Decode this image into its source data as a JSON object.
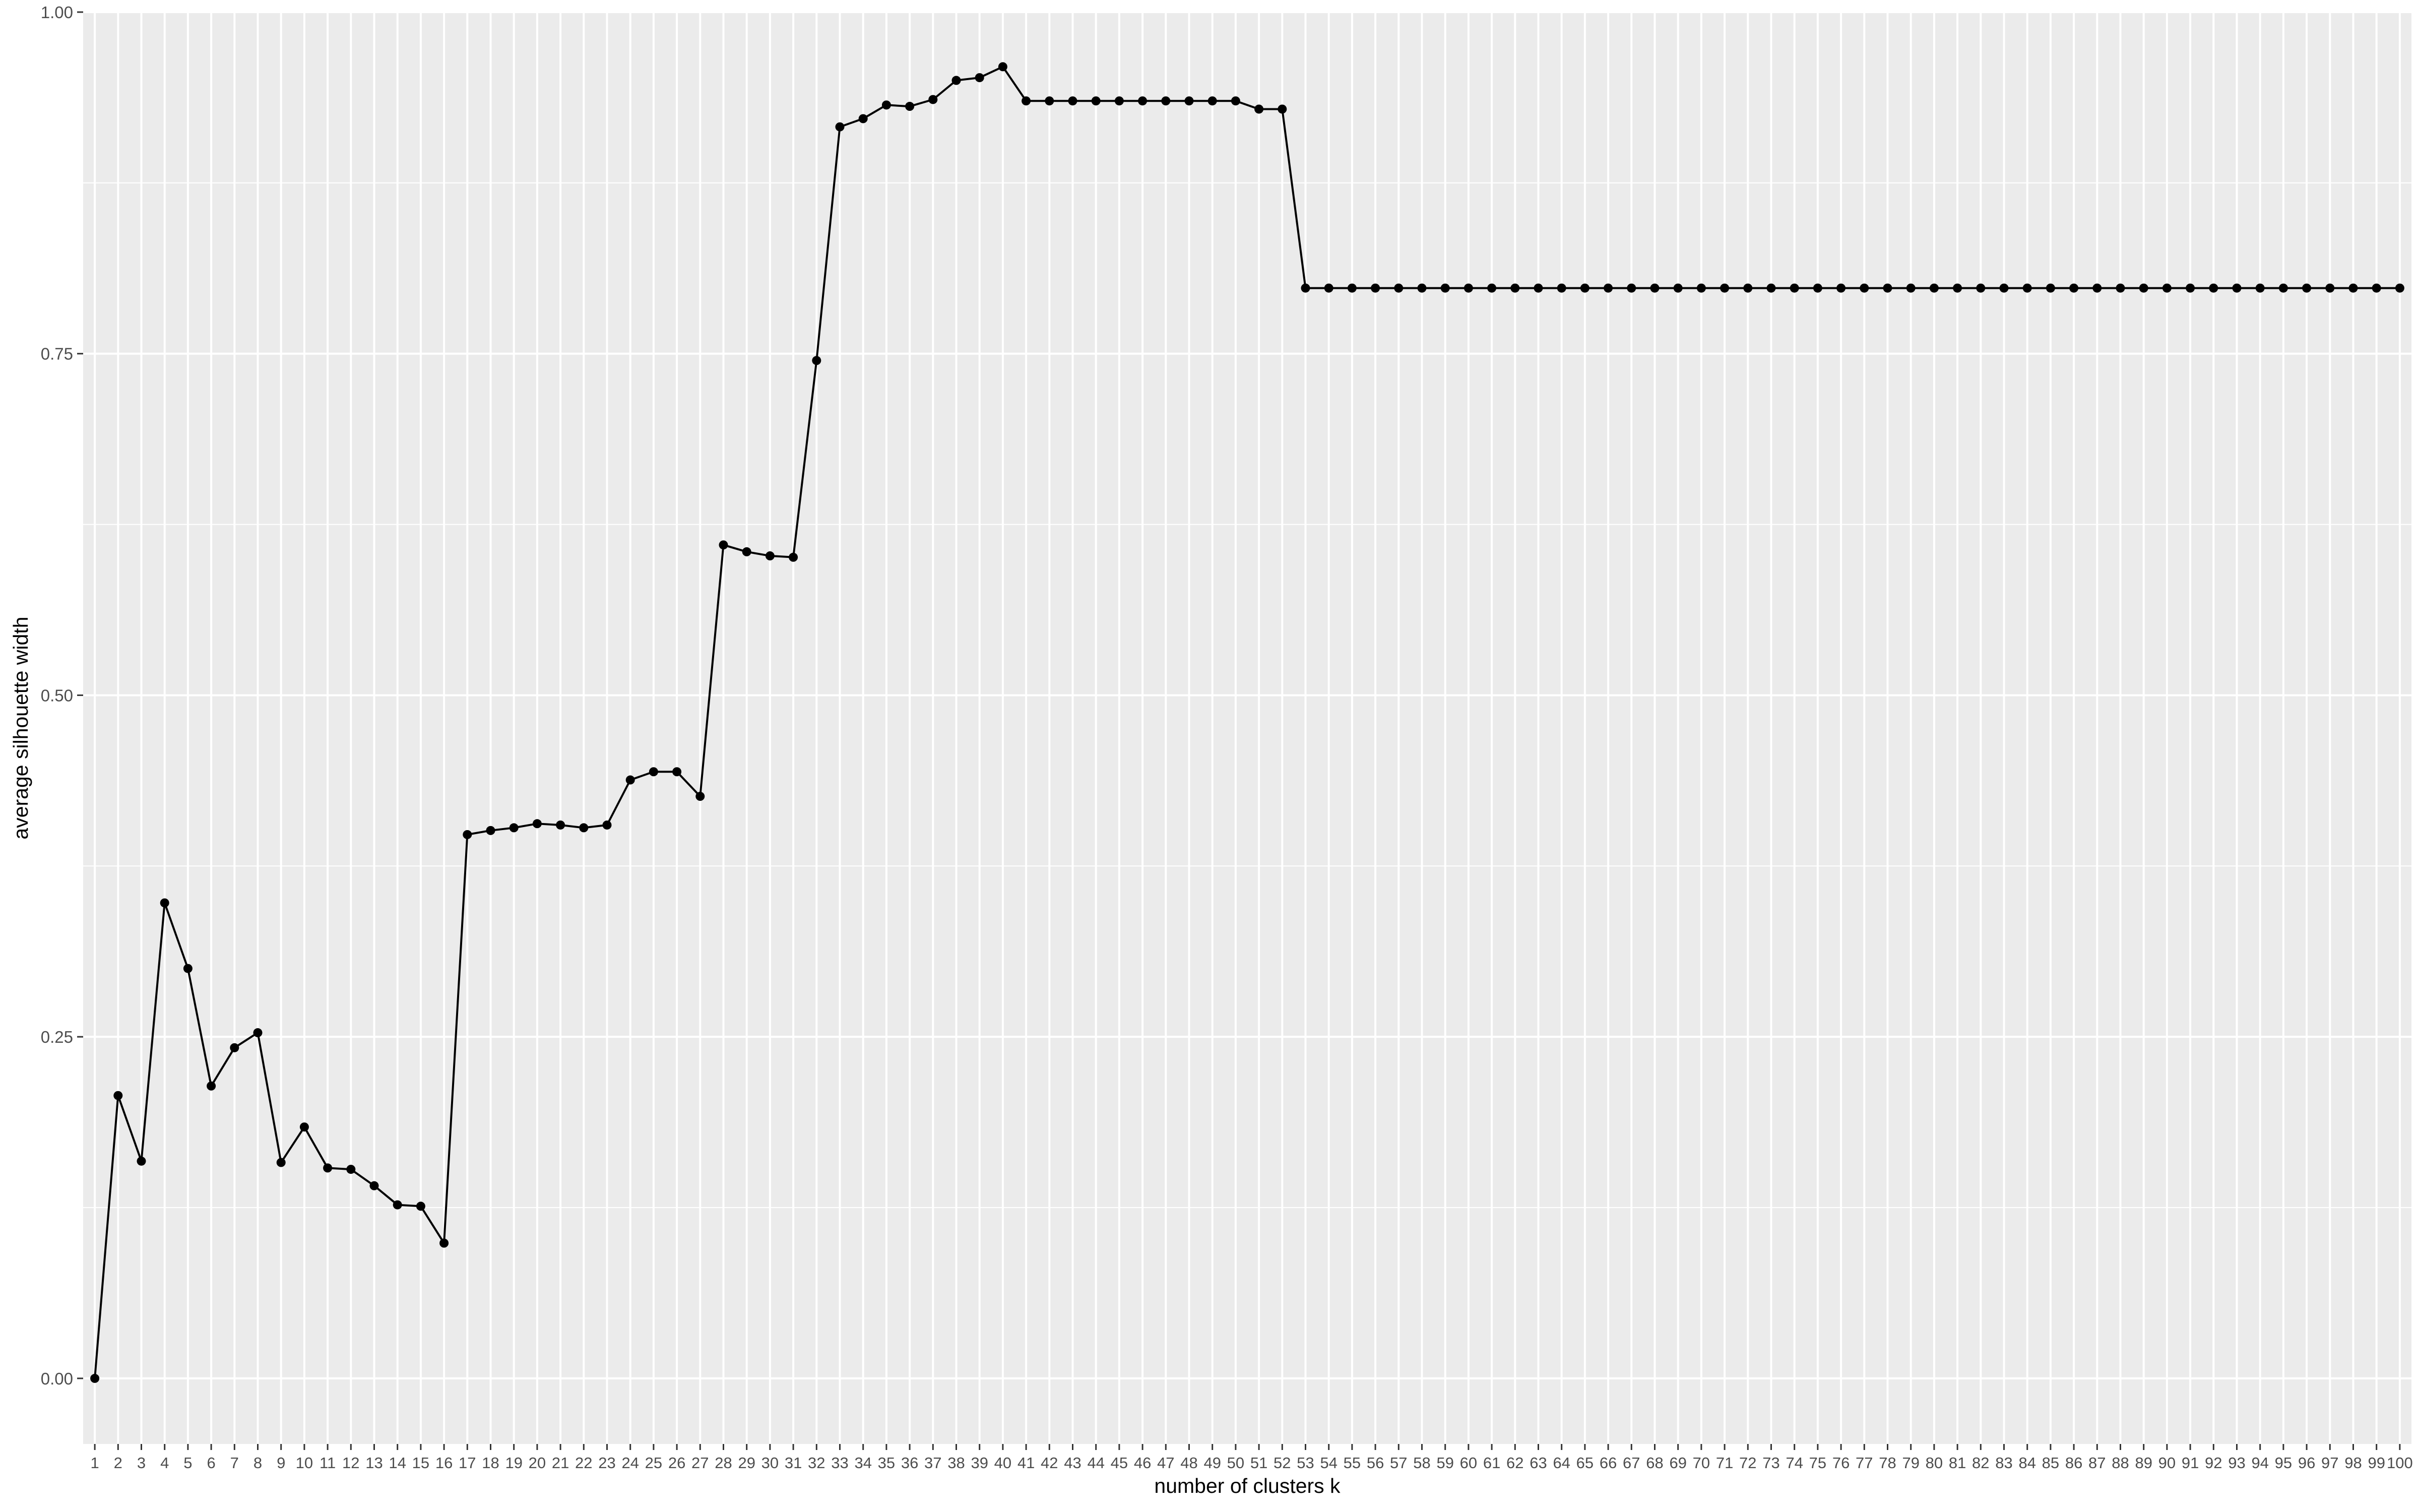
{
  "chart_data": {
    "type": "line",
    "title": "",
    "xlabel": "number of clusters k",
    "ylabel": "average silhouette width",
    "x": [
      1,
      2,
      3,
      4,
      5,
      6,
      7,
      8,
      9,
      10,
      11,
      12,
      13,
      14,
      15,
      16,
      17,
      18,
      19,
      20,
      21,
      22,
      23,
      24,
      25,
      26,
      27,
      28,
      29,
      30,
      31,
      32,
      33,
      34,
      35,
      36,
      37,
      38,
      39,
      40,
      41,
      42,
      43,
      44,
      45,
      46,
      47,
      48,
      49,
      50,
      51,
      52,
      53,
      54,
      55,
      56,
      57,
      58,
      59,
      60,
      61,
      62,
      63,
      64,
      65,
      66,
      67,
      68,
      69,
      70,
      71,
      72,
      73,
      74,
      75,
      76,
      77,
      78,
      79,
      80,
      81,
      82,
      83,
      84,
      85,
      86,
      87,
      88,
      89,
      90,
      91,
      92,
      93,
      94,
      95,
      96,
      97,
      98,
      99,
      100
    ],
    "y": [
      0.0,
      0.207,
      0.159,
      0.348,
      0.3,
      0.214,
      0.242,
      0.253,
      0.158,
      0.184,
      0.154,
      0.153,
      0.141,
      0.127,
      0.126,
      0.099,
      0.398,
      0.401,
      0.403,
      0.406,
      0.405,
      0.403,
      0.405,
      0.438,
      0.444,
      0.444,
      0.426,
      0.61,
      0.605,
      0.602,
      0.601,
      0.745,
      0.916,
      0.922,
      0.932,
      0.931,
      0.936,
      0.95,
      0.952,
      0.96,
      0.935,
      0.935,
      0.935,
      0.935,
      0.935,
      0.935,
      0.935,
      0.935,
      0.935,
      0.935,
      0.929,
      0.929,
      0.798,
      0.798,
      0.798,
      0.798,
      0.798,
      0.798,
      0.798,
      0.798,
      0.798,
      0.798,
      0.798,
      0.798,
      0.798,
      0.798,
      0.798,
      0.798,
      0.798,
      0.798,
      0.798,
      0.798,
      0.798,
      0.798,
      0.798,
      0.798,
      0.798,
      0.798,
      0.798,
      0.798,
      0.798,
      0.798,
      0.798,
      0.798,
      0.798,
      0.798,
      0.798,
      0.798,
      0.798,
      0.798,
      0.798,
      0.798,
      0.798,
      0.798,
      0.798,
      0.798,
      0.798,
      0.798,
      0.798,
      0.798
    ],
    "xlim": [
      0.5,
      100.5
    ],
    "ylim": [
      -0.048,
      1.0
    ],
    "y_ticks": [
      0.0,
      0.25,
      0.5,
      0.75,
      1.0
    ],
    "y_tick_labels": [
      "0.00",
      "0.25",
      "0.50",
      "0.75",
      "1.00"
    ],
    "grid": true,
    "legend": "none",
    "colors": {
      "panel": "#ebebeb",
      "grid": "#ffffff",
      "line": "#000000",
      "point": "#000000",
      "tick": "#333333"
    }
  }
}
